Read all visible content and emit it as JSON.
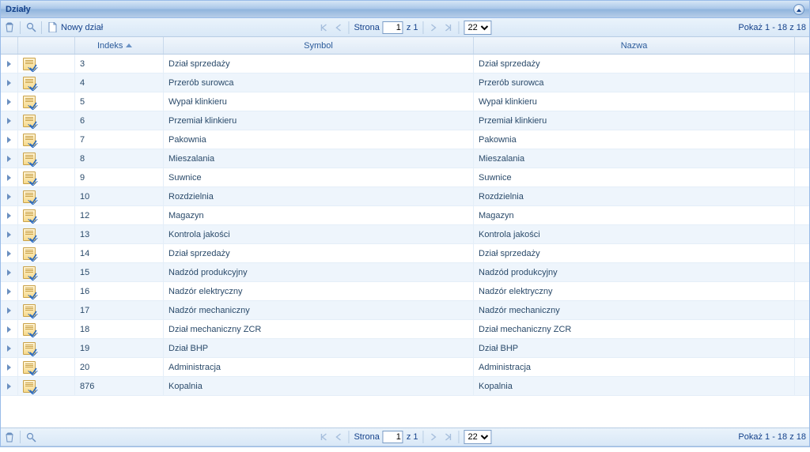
{
  "panel": {
    "title": "Działy"
  },
  "toolbar": {
    "new_label": "Nowy dział",
    "page_label_prefix": "Strona",
    "page_current": "1",
    "page_total_label": "z 1",
    "page_size": "22",
    "status": "Pokaż 1 - 18 z 18"
  },
  "columns": {
    "indeks": "Indeks",
    "symbol": "Symbol",
    "nazwa": "Nazwa"
  },
  "rows": [
    {
      "indeks": "3",
      "symbol": "Dział sprzedaży",
      "nazwa": "Dział sprzedaży"
    },
    {
      "indeks": "4",
      "symbol": "Przerób surowca",
      "nazwa": "Przerób surowca"
    },
    {
      "indeks": "5",
      "symbol": "Wypał klinkieru",
      "nazwa": "Wypał klinkieru"
    },
    {
      "indeks": "6",
      "symbol": "Przemiał klinkieru",
      "nazwa": "Przemiał klinkieru"
    },
    {
      "indeks": "7",
      "symbol": "Pakownia",
      "nazwa": "Pakownia"
    },
    {
      "indeks": "8",
      "symbol": "Mieszalania",
      "nazwa": "Mieszalania"
    },
    {
      "indeks": "9",
      "symbol": "Suwnice",
      "nazwa": "Suwnice"
    },
    {
      "indeks": "10",
      "symbol": "Rozdzielnia",
      "nazwa": "Rozdzielnia"
    },
    {
      "indeks": "12",
      "symbol": "Magazyn",
      "nazwa": "Magazyn"
    },
    {
      "indeks": "13",
      "symbol": "Kontrola jakości",
      "nazwa": "Kontrola jakości"
    },
    {
      "indeks": "14",
      "symbol": "Dział sprzedaży",
      "nazwa": "Dział sprzedaży"
    },
    {
      "indeks": "15",
      "symbol": "Nadzód produkcyjny",
      "nazwa": "Nadzód produkcyjny"
    },
    {
      "indeks": "16",
      "symbol": "Nadzór elektryczny",
      "nazwa": "Nadzór elektryczny"
    },
    {
      "indeks": "17",
      "symbol": "Nadzór mechaniczny",
      "nazwa": "Nadzór mechaniczny"
    },
    {
      "indeks": "18",
      "symbol": "Dział mechaniczny ZCR",
      "nazwa": "Dział mechaniczny ZCR"
    },
    {
      "indeks": "19",
      "symbol": "Dział BHP",
      "nazwa": "Dział BHP"
    },
    {
      "indeks": "20",
      "symbol": "Administracja",
      "nazwa": "Administracja"
    },
    {
      "indeks": "876",
      "symbol": "Kopalnia",
      "nazwa": "Kopalnia"
    }
  ],
  "colors": {
    "border": "#99bbe8",
    "header_text": "#15428b",
    "row_alt": "#eef5fc"
  }
}
